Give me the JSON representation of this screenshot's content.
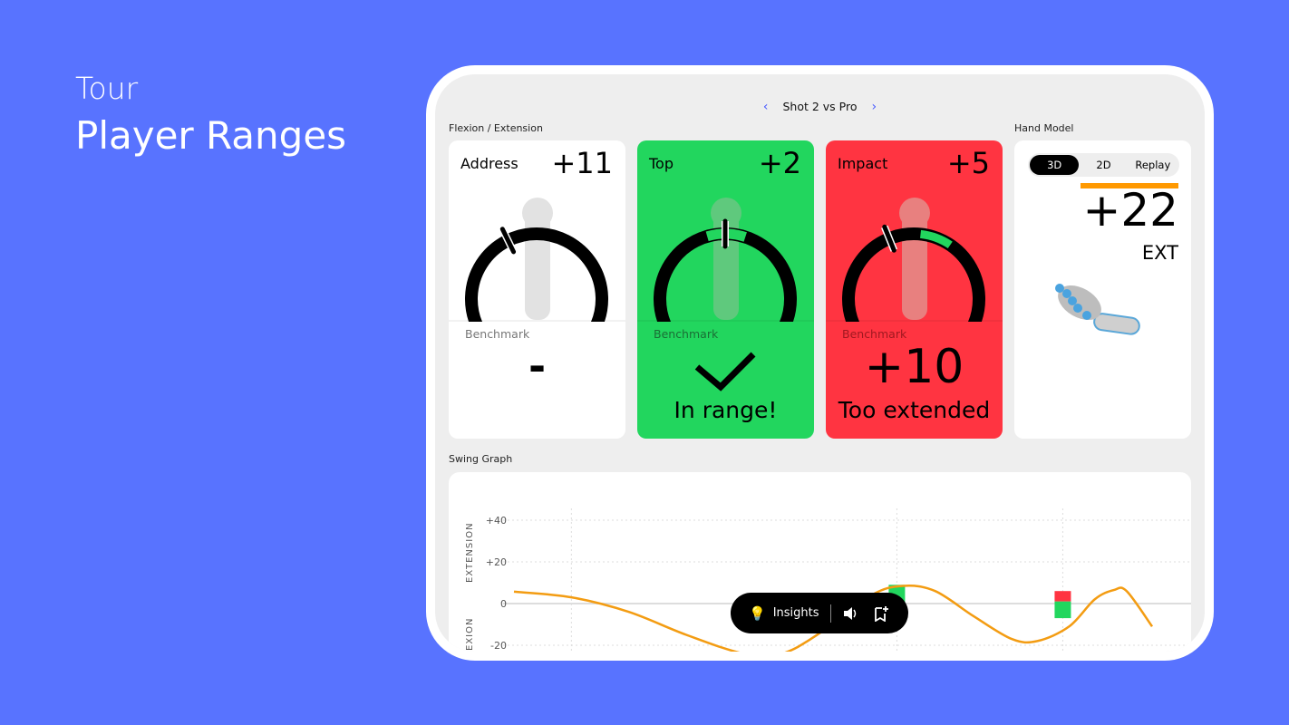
{
  "hero": {
    "subtitle": "Tour",
    "title": "Player Ranges"
  },
  "nav": {
    "title": "Shot 2 vs Pro",
    "prev": "‹",
    "next": "›"
  },
  "sections": {
    "flexion": "Flexion / Extension",
    "hand_model": "Hand Model",
    "swing_graph": "Swing Graph"
  },
  "cards": [
    {
      "label": "Address",
      "value": "+11",
      "benchmark_label": "Benchmark",
      "benchmark": "-",
      "status": "",
      "color": "#FFFFFF"
    },
    {
      "label": "Top",
      "value": "+2",
      "benchmark_label": "Benchmark",
      "benchmark": "",
      "status": "In range!",
      "color": "#22D65E",
      "icon": "checkmark-icon"
    },
    {
      "label": "Impact",
      "value": "+5",
      "benchmark_label": "Benchmark",
      "benchmark": "+10",
      "status": "Too extended",
      "color": "#FF3441"
    }
  ],
  "hand_model": {
    "tabs": [
      "3D",
      "2D",
      "Replay"
    ],
    "active_tab": "3D",
    "value": "+22",
    "unit": "EXT",
    "accent": "#FF9900"
  },
  "pill": {
    "insights": "Insights",
    "icons": [
      "lightbulb-icon",
      "speaker-icon",
      "bookmark-add-icon"
    ]
  },
  "chart_data": {
    "type": "line",
    "ylabel_top": "EXTENSION",
    "ylabel_bottom": "EXION",
    "yticks": [
      "+40",
      "+20",
      "0",
      "-20"
    ],
    "ylim": [
      -22,
      44
    ],
    "grid": true,
    "line_color": "#F39C12",
    "x": [
      0,
      9,
      18,
      27,
      36,
      42,
      48,
      56,
      61,
      66,
      72,
      78,
      82,
      87,
      91,
      94,
      96,
      100
    ],
    "y": [
      5.7,
      3,
      -4,
      -15,
      -24,
      -24,
      -14,
      4,
      8.5,
      6,
      -6,
      -17,
      -18,
      -11,
      2,
      6.5,
      6,
      -11
    ],
    "markers": [
      {
        "x": 60,
        "segments": [
          {
            "from": 0,
            "to": 9,
            "color": "#22D65E"
          }
        ]
      },
      {
        "x": 86,
        "segments": [
          {
            "from": 1,
            "to": 6,
            "color": "#FF3441"
          },
          {
            "from": -7,
            "to": 1,
            "color": "#22D65E"
          }
        ]
      }
    ],
    "vgrid_x": [
      9,
      60,
      86
    ]
  }
}
